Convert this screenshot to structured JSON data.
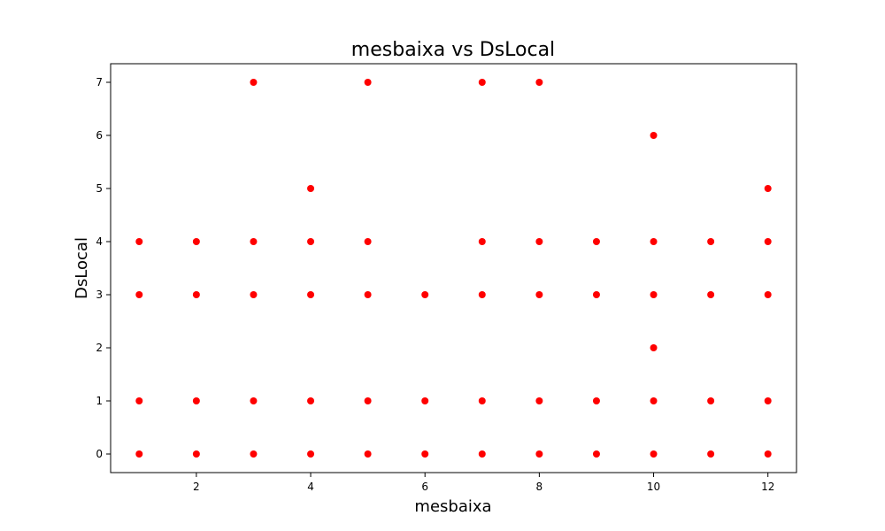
{
  "chart_data": {
    "type": "scatter",
    "title": "mesbaixa vs DsLocal",
    "xlabel": "mesbaixa",
    "ylabel": "DsLocal",
    "xlim": [
      0.5,
      12.5
    ],
    "ylim": [
      -0.35,
      7.35
    ],
    "xticks": [
      2,
      4,
      6,
      8,
      10,
      12
    ],
    "yticks": [
      0,
      1,
      2,
      3,
      4,
      5,
      6,
      7
    ],
    "grid": false,
    "marker_color": "#ff0000",
    "points": [
      [
        1,
        0
      ],
      [
        1,
        1
      ],
      [
        1,
        3
      ],
      [
        1,
        4
      ],
      [
        2,
        0
      ],
      [
        2,
        1
      ],
      [
        2,
        3
      ],
      [
        2,
        4
      ],
      [
        3,
        0
      ],
      [
        3,
        1
      ],
      [
        3,
        3
      ],
      [
        3,
        4
      ],
      [
        3,
        7
      ],
      [
        4,
        0
      ],
      [
        4,
        1
      ],
      [
        4,
        3
      ],
      [
        4,
        4
      ],
      [
        4,
        5
      ],
      [
        5,
        0
      ],
      [
        5,
        1
      ],
      [
        5,
        3
      ],
      [
        5,
        4
      ],
      [
        5,
        7
      ],
      [
        6,
        0
      ],
      [
        6,
        1
      ],
      [
        6,
        3
      ],
      [
        7,
        0
      ],
      [
        7,
        1
      ],
      [
        7,
        3
      ],
      [
        7,
        4
      ],
      [
        7,
        7
      ],
      [
        8,
        0
      ],
      [
        8,
        1
      ],
      [
        8,
        3
      ],
      [
        8,
        4
      ],
      [
        8,
        7
      ],
      [
        9,
        0
      ],
      [
        9,
        1
      ],
      [
        9,
        3
      ],
      [
        9,
        4
      ],
      [
        10,
        0
      ],
      [
        10,
        1
      ],
      [
        10,
        2
      ],
      [
        10,
        3
      ],
      [
        10,
        4
      ],
      [
        10,
        6
      ],
      [
        11,
        0
      ],
      [
        11,
        1
      ],
      [
        11,
        3
      ],
      [
        11,
        4
      ],
      [
        12,
        0
      ],
      [
        12,
        1
      ],
      [
        12,
        3
      ],
      [
        12,
        4
      ],
      [
        12,
        5
      ]
    ]
  }
}
